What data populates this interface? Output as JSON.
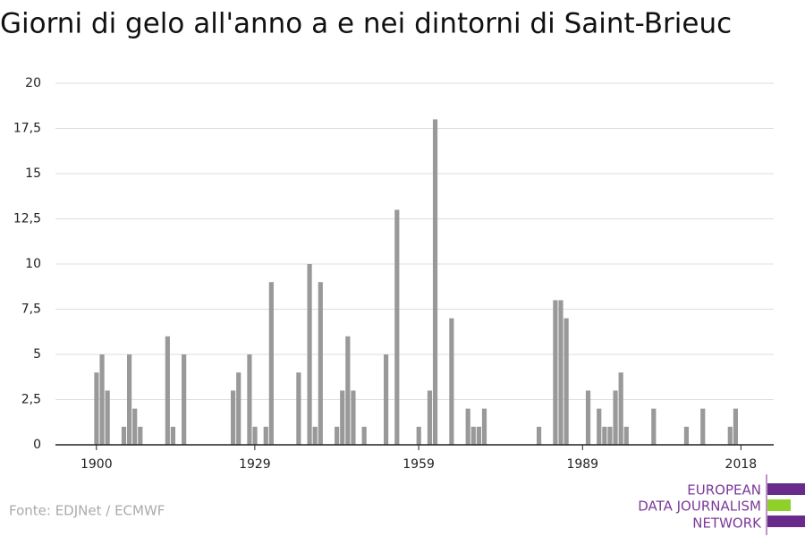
{
  "chart_data": {
    "type": "bar",
    "title": "Giorni di gelo all'anno a e nei dintorni di Saint-Brieuc",
    "x": [
      1900,
      1901,
      1902,
      1905,
      1906,
      1907,
      1908,
      1913,
      1914,
      1916,
      1925,
      1926,
      1928,
      1929,
      1931,
      1932,
      1937,
      1939,
      1940,
      1941,
      1944,
      1945,
      1946,
      1947,
      1949,
      1953,
      1955,
      1959,
      1961,
      1962,
      1965,
      1968,
      1969,
      1970,
      1971,
      1981,
      1984,
      1985,
      1986,
      1990,
      1992,
      1993,
      1994,
      1995,
      1996,
      1997,
      2002,
      2008,
      2011,
      2016,
      2017
    ],
    "values": [
      4,
      5,
      3,
      1,
      5,
      2,
      1,
      6,
      1,
      5,
      3,
      4,
      5,
      1,
      1,
      9,
      4,
      10,
      1,
      9,
      1,
      3,
      6,
      3,
      1,
      5,
      13,
      1,
      3,
      18,
      7,
      2,
      1,
      1,
      2,
      1,
      8,
      8,
      7,
      3,
      2,
      1,
      1,
      3,
      4,
      1,
      2,
      1,
      2,
      1,
      2
    ],
    "color": "#999999",
    "xlim": [
      1893,
      2024.5
    ],
    "xticks": [
      1900,
      1929,
      1959,
      1989,
      2018
    ],
    "ylim": [
      0,
      20
    ],
    "yticks": [
      0,
      {
        "value": 2.5,
        "label": "2,5"
      },
      5,
      {
        "value": 7.5,
        "label": "7,5"
      },
      10,
      {
        "value": 12.5,
        "label": "12,5"
      },
      15,
      {
        "value": 17.5,
        "label": "17,5"
      },
      20
    ],
    "grid": true,
    "source": "Fonte: EDJNet / ECMWF",
    "logo": [
      "EUROPEAN",
      "DATA JOURNALISM",
      "NETWORK"
    ]
  }
}
